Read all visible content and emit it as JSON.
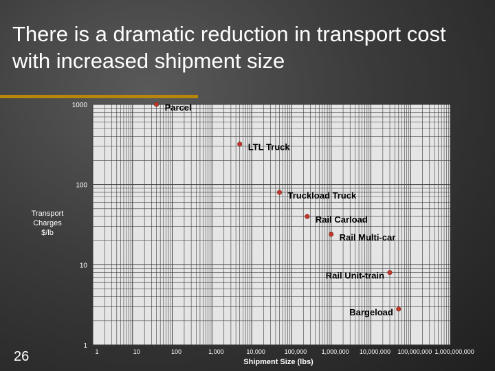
{
  "slide": {
    "title": "There is a dramatic reduction in transport cost with increased shipment size",
    "number": "26"
  },
  "colors": {
    "plot_background": "#e5e5e5",
    "grid": "#3a3a3a",
    "marker": "#c0392b",
    "title_rule": "#b8860b"
  },
  "chart_data": {
    "type": "scatter",
    "xscale": "log",
    "yscale": "log",
    "xlabel": "Shipment Size (lbs)",
    "ylabel": [
      "Transport",
      "Charges",
      "$/lb"
    ],
    "xlim": [
      1,
      1000000000
    ],
    "ylim": [
      1,
      1000
    ],
    "x_ticks": [
      {
        "value": 1,
        "label": "1"
      },
      {
        "value": 10,
        "label": "10"
      },
      {
        "value": 100,
        "label": "100"
      },
      {
        "value": 1000,
        "label": "1,000"
      },
      {
        "value": 10000,
        "label": "10,000"
      },
      {
        "value": 100000,
        "label": "100,000"
      },
      {
        "value": 1000000,
        "label": "1,000,000"
      },
      {
        "value": 10000000,
        "label": "10,000,000"
      },
      {
        "value": 100000000,
        "label": "100,000,000"
      },
      {
        "value": 1000000000,
        "label": "1,000,000,000"
      }
    ],
    "y_ticks": [
      {
        "value": 1,
        "label": "1"
      },
      {
        "value": 10,
        "label": "10"
      },
      {
        "value": 100,
        "label": "100"
      },
      {
        "value": 1000,
        "label": "1000"
      }
    ],
    "grid": true,
    "points": [
      {
        "label": "Parcel",
        "x": 40,
        "y": 1000
      },
      {
        "label": "LTL Truck",
        "x": 5000,
        "y": 320
      },
      {
        "label": "Truckload Truck",
        "x": 50000,
        "y": 80
      },
      {
        "label": "Rail Carload",
        "x": 250000,
        "y": 40
      },
      {
        "label": "Rail Multi-car",
        "x": 1000000,
        "y": 24
      },
      {
        "label": "Rail Unit-train",
        "x": 30000000,
        "y": 8
      },
      {
        "label": "Bargeload",
        "x": 50000000,
        "y": 2.8
      }
    ]
  }
}
